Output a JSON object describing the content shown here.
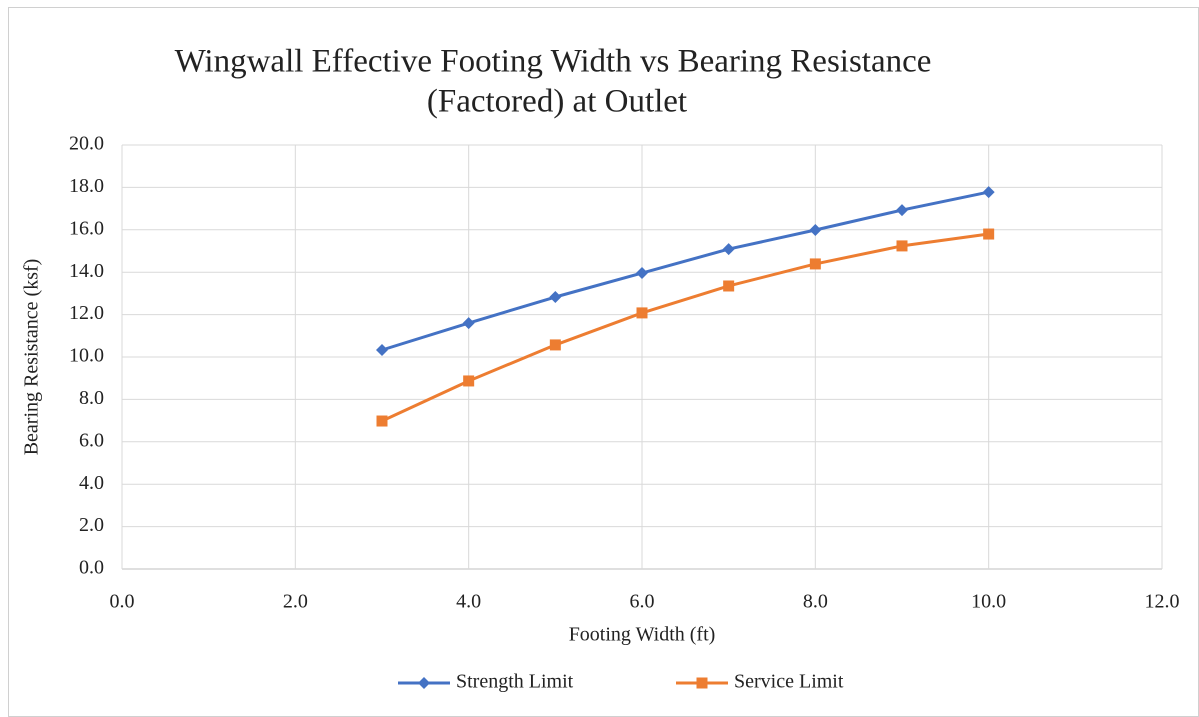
{
  "chart_data": {
    "type": "line",
    "title": [
      "Wingwall Effective Footing Width vs Bearing Resistance",
      "(Factored) at Outlet"
    ],
    "x_label": "Footing Width (ft)",
    "y_label": "Bearing Resistance (ksf)",
    "x": [
      3,
      4,
      5,
      6,
      7,
      8,
      9,
      10
    ],
    "series": [
      {
        "name": "Strength Limit",
        "color": "#4472c4",
        "marker": "diamond",
        "values": [
          10.33,
          11.6,
          12.83,
          13.96,
          15.09,
          15.99,
          16.93,
          17.78
        ]
      },
      {
        "name": "Service Limit",
        "color": "#ed7d31",
        "marker": "square",
        "values": [
          6.98,
          8.87,
          10.57,
          12.08,
          13.35,
          14.39,
          15.24,
          15.8
        ]
      }
    ],
    "xlim": [
      0,
      12
    ],
    "xticks": [
      {
        "value": 0,
        "label": "0.0"
      },
      {
        "value": 2,
        "label": "2.0"
      },
      {
        "value": 4,
        "label": "4.0"
      },
      {
        "value": 6,
        "label": "6.0"
      },
      {
        "value": 8,
        "label": "8.0"
      },
      {
        "value": 10,
        "label": "10.0"
      },
      {
        "value": 12,
        "label": "12.0"
      }
    ],
    "ylim": [
      0,
      20
    ],
    "yticks": [
      {
        "value": 0,
        "label": "0.0"
      },
      {
        "value": 2,
        "label": "2.0"
      },
      {
        "value": 4,
        "label": "4.0"
      },
      {
        "value": 6,
        "label": "6.0"
      },
      {
        "value": 8,
        "label": "8.0"
      },
      {
        "value": 10,
        "label": "10.0"
      },
      {
        "value": 12,
        "label": "12.0"
      },
      {
        "value": 14,
        "label": "14.0"
      },
      {
        "value": 16,
        "label": "16.0"
      },
      {
        "value": 18,
        "label": "18.0"
      },
      {
        "value": 20,
        "label": "20.0"
      }
    ],
    "grid": true,
    "legend": "bottom"
  }
}
